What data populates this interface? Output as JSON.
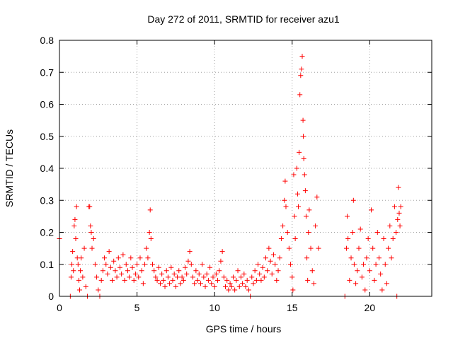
{
  "chart_data": {
    "type": "scatter",
    "title": "Day 272 of 2011, SRMTID for receiver azu1",
    "xlabel": "GPS time / hours",
    "ylabel": "SRMTID / TECUs",
    "xlim": [
      0,
      24
    ],
    "ylim": [
      0,
      0.8
    ],
    "xticks": [
      0,
      5,
      10,
      15,
      20
    ],
    "yticks": [
      0,
      0.1,
      0.2,
      0.3,
      0.4,
      0.5,
      0.6,
      0.7,
      0.8
    ],
    "xtick_labels": [
      "0",
      "5",
      "10",
      "15",
      "20"
    ],
    "ytick_labels": [
      "0",
      "0.1",
      "0.2",
      "0.3",
      "0.4",
      "0.5",
      "0.6",
      "0.7",
      "0.8"
    ],
    "grid": true,
    "marker": "+",
    "color": "#ff0000",
    "series": [
      {
        "name": "SRMTID",
        "points": [
          [
            0.0,
            0.18
          ],
          [
            0.7,
            0.0
          ],
          [
            0.75,
            0.06
          ],
          [
            0.8,
            0.1
          ],
          [
            0.85,
            0.14
          ],
          [
            0.9,
            0.08
          ],
          [
            0.95,
            0.22
          ],
          [
            1.0,
            0.24
          ],
          [
            1.05,
            0.18
          ],
          [
            1.1,
            0.28
          ],
          [
            1.15,
            0.12
          ],
          [
            1.2,
            0.1
          ],
          [
            1.25,
            0.05
          ],
          [
            1.3,
            0.02
          ],
          [
            1.35,
            0.08
          ],
          [
            1.4,
            0.12
          ],
          [
            1.5,
            0.06
          ],
          [
            1.6,
            0.15
          ],
          [
            1.7,
            0.03
          ],
          [
            1.8,
            0.0
          ],
          [
            1.9,
            0.28
          ],
          [
            1.95,
            0.28
          ],
          [
            2.0,
            0.22
          ],
          [
            2.05,
            0.2
          ],
          [
            2.1,
            0.15
          ],
          [
            2.2,
            0.18
          ],
          [
            2.3,
            0.1
          ],
          [
            2.4,
            0.06
          ],
          [
            2.5,
            0.02
          ],
          [
            2.6,
            0.0
          ],
          [
            2.7,
            0.05
          ],
          [
            2.8,
            0.08
          ],
          [
            2.9,
            0.12
          ],
          [
            3.0,
            0.1
          ],
          [
            3.1,
            0.07
          ],
          [
            3.2,
            0.14
          ],
          [
            3.3,
            0.09
          ],
          [
            3.4,
            0.05
          ],
          [
            3.5,
            0.11
          ],
          [
            3.6,
            0.08
          ],
          [
            3.7,
            0.06
          ],
          [
            3.8,
            0.12
          ],
          [
            3.9,
            0.09
          ],
          [
            4.0,
            0.07
          ],
          [
            4.1,
            0.13
          ],
          [
            4.2,
            0.05
          ],
          [
            4.3,
            0.1
          ],
          [
            4.4,
            0.08
          ],
          [
            4.5,
            0.06
          ],
          [
            4.6,
            0.12
          ],
          [
            4.7,
            0.09
          ],
          [
            4.8,
            0.05
          ],
          [
            4.9,
            0.07
          ],
          [
            5.0,
            0.1
          ],
          [
            5.1,
            0.06
          ],
          [
            5.2,
            0.12
          ],
          [
            5.3,
            0.08
          ],
          [
            5.4,
            0.04
          ],
          [
            5.5,
            0.1
          ],
          [
            5.6,
            0.15
          ],
          [
            5.7,
            0.12
          ],
          [
            5.8,
            0.2
          ],
          [
            5.85,
            0.27
          ],
          [
            5.9,
            0.18
          ],
          [
            6.0,
            0.1
          ],
          [
            6.1,
            0.08
          ],
          [
            6.2,
            0.06
          ],
          [
            6.3,
            0.05
          ],
          [
            6.4,
            0.09
          ],
          [
            6.5,
            0.04
          ],
          [
            6.6,
            0.07
          ],
          [
            6.7,
            0.05
          ],
          [
            6.8,
            0.03
          ],
          [
            6.9,
            0.08
          ],
          [
            7.0,
            0.06
          ],
          [
            7.1,
            0.04
          ],
          [
            7.2,
            0.09
          ],
          [
            7.3,
            0.05
          ],
          [
            7.4,
            0.07
          ],
          [
            7.5,
            0.03
          ],
          [
            7.6,
            0.06
          ],
          [
            7.7,
            0.08
          ],
          [
            7.8,
            0.04
          ],
          [
            7.9,
            0.06
          ],
          [
            8.0,
            0.05
          ],
          [
            8.1,
            0.09
          ],
          [
            8.2,
            0.07
          ],
          [
            8.3,
            0.11
          ],
          [
            8.4,
            0.14
          ],
          [
            8.5,
            0.1
          ],
          [
            8.6,
            0.06
          ],
          [
            8.7,
            0.04
          ],
          [
            8.8,
            0.08
          ],
          [
            8.9,
            0.05
          ],
          [
            9.0,
            0.07
          ],
          [
            9.1,
            0.04
          ],
          [
            9.2,
            0.1
          ],
          [
            9.3,
            0.06
          ],
          [
            9.4,
            0.03
          ],
          [
            9.5,
            0.07
          ],
          [
            9.6,
            0.05
          ],
          [
            9.7,
            0.09
          ],
          [
            9.8,
            0.04
          ],
          [
            9.9,
            0.06
          ],
          [
            10.0,
            0.03
          ],
          [
            10.1,
            0.07
          ],
          [
            10.2,
            0.05
          ],
          [
            10.3,
            0.08
          ],
          [
            10.4,
            0.11
          ],
          [
            10.5,
            0.14
          ],
          [
            10.6,
            0.06
          ],
          [
            10.7,
            0.03
          ],
          [
            10.8,
            0.05
          ],
          [
            10.9,
            0.02
          ],
          [
            11.0,
            0.04
          ],
          [
            11.1,
            0.03
          ],
          [
            11.2,
            0.06
          ],
          [
            11.3,
            0.02
          ],
          [
            11.4,
            0.05
          ],
          [
            11.5,
            0.08
          ],
          [
            11.6,
            0.03
          ],
          [
            11.7,
            0.06
          ],
          [
            11.8,
            0.04
          ],
          [
            11.9,
            0.07
          ],
          [
            12.0,
            0.03
          ],
          [
            12.1,
            0.05
          ],
          [
            12.2,
            0.02
          ],
          [
            12.3,
            0.0
          ],
          [
            12.4,
            0.06
          ],
          [
            12.5,
            0.04
          ],
          [
            12.6,
            0.08
          ],
          [
            12.7,
            0.05
          ],
          [
            12.8,
            0.1
          ],
          [
            12.9,
            0.07
          ],
          [
            13.0,
            0.05
          ],
          [
            13.1,
            0.09
          ],
          [
            13.2,
            0.06
          ],
          [
            13.3,
            0.12
          ],
          [
            13.4,
            0.08
          ],
          [
            13.5,
            0.15
          ],
          [
            13.6,
            0.11
          ],
          [
            13.7,
            0.07
          ],
          [
            13.8,
            0.13
          ],
          [
            13.9,
            0.1
          ],
          [
            14.0,
            0.05
          ],
          [
            14.1,
            0.08
          ],
          [
            14.2,
            0.12
          ],
          [
            14.3,
            0.18
          ],
          [
            14.4,
            0.22
          ],
          [
            14.5,
            0.3
          ],
          [
            14.55,
            0.36
          ],
          [
            14.6,
            0.28
          ],
          [
            14.7,
            0.2
          ],
          [
            14.8,
            0.15
          ],
          [
            14.9,
            0.1
          ],
          [
            15.0,
            0.06
          ],
          [
            15.05,
            0.02
          ],
          [
            15.1,
            0.38
          ],
          [
            15.15,
            0.25
          ],
          [
            15.2,
            0.18
          ],
          [
            15.3,
            0.4
          ],
          [
            15.35,
            0.32
          ],
          [
            15.4,
            0.28
          ],
          [
            15.45,
            0.45
          ],
          [
            15.5,
            0.63
          ],
          [
            15.55,
            0.69
          ],
          [
            15.6,
            0.71
          ],
          [
            15.65,
            0.75
          ],
          [
            15.7,
            0.55
          ],
          [
            15.72,
            0.5
          ],
          [
            15.75,
            0.43
          ],
          [
            15.8,
            0.38
          ],
          [
            15.85,
            0.33
          ],
          [
            15.9,
            0.25
          ],
          [
            15.95,
            0.12
          ],
          [
            16.0,
            0.05
          ],
          [
            16.05,
            0.2
          ],
          [
            16.1,
            0.27
          ],
          [
            16.2,
            0.15
          ],
          [
            16.3,
            0.08
          ],
          [
            16.4,
            0.04
          ],
          [
            16.5,
            0.22
          ],
          [
            16.6,
            0.31
          ],
          [
            16.7,
            0.15
          ],
          [
            18.4,
            0.0
          ],
          [
            18.5,
            0.15
          ],
          [
            18.55,
            0.25
          ],
          [
            18.6,
            0.18
          ],
          [
            18.7,
            0.05
          ],
          [
            18.8,
            0.12
          ],
          [
            18.9,
            0.2
          ],
          [
            18.95,
            0.3
          ],
          [
            19.0,
            0.1
          ],
          [
            19.1,
            0.04
          ],
          [
            19.2,
            0.08
          ],
          [
            19.3,
            0.15
          ],
          [
            19.4,
            0.21
          ],
          [
            19.5,
            0.06
          ],
          [
            19.6,
            0.1
          ],
          [
            19.7,
            0.02
          ],
          [
            19.8,
            0.12
          ],
          [
            19.9,
            0.18
          ],
          [
            20.0,
            0.08
          ],
          [
            20.1,
            0.27
          ],
          [
            20.2,
            0.15
          ],
          [
            20.3,
            0.05
          ],
          [
            20.4,
            0.1
          ],
          [
            20.5,
            0.2
          ],
          [
            20.6,
            0.12
          ],
          [
            20.7,
            0.07
          ],
          [
            20.8,
            0.02
          ],
          [
            20.9,
            0.18
          ],
          [
            21.0,
            0.1
          ],
          [
            21.1,
            0.04
          ],
          [
            21.2,
            0.15
          ],
          [
            21.3,
            0.22
          ],
          [
            21.4,
            0.12
          ],
          [
            21.5,
            0.18
          ],
          [
            21.6,
            0.28
          ],
          [
            21.7,
            0.2
          ],
          [
            21.75,
            0.0
          ],
          [
            21.8,
            0.24
          ],
          [
            21.85,
            0.34
          ],
          [
            21.9,
            0.26
          ],
          [
            21.95,
            0.22
          ],
          [
            22.0,
            0.28
          ]
        ]
      }
    ]
  }
}
